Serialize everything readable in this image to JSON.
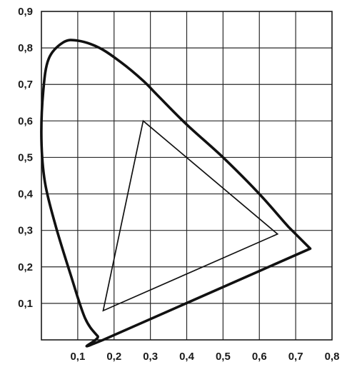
{
  "chart_data": {
    "type": "line",
    "title": "",
    "xlabel": "",
    "ylabel": "",
    "xlim": [
      0,
      0.8
    ],
    "ylim": [
      0,
      0.9
    ],
    "grid": true,
    "x_ticks": [
      "0,1",
      "0,2",
      "0,3",
      "0,4",
      "0,5",
      "0,6",
      "0,7",
      "0,8"
    ],
    "y_ticks": [
      "0,1",
      "0,2",
      "0,3",
      "0,4",
      "0,5",
      "0,6",
      "0,7",
      "0,8",
      "0,9"
    ],
    "series": [
      {
        "style": "thick",
        "closed": true,
        "x": [
          0.74,
          0.68,
          0.6,
          0.5,
          0.4,
          0.32,
          0.28,
          0.22,
          0.16,
          0.1,
          0.06,
          0.02,
          0.005,
          0.0,
          0.01,
          0.04,
          0.08,
          0.12,
          0.155,
          0.17
        ],
        "y": [
          0.25,
          0.31,
          0.4,
          0.5,
          0.59,
          0.67,
          0.71,
          0.76,
          0.8,
          0.82,
          0.815,
          0.77,
          0.68,
          0.55,
          0.43,
          0.31,
          0.18,
          0.06,
          0.01,
          0.0
        ]
      },
      {
        "style": "thin",
        "closed": true,
        "x": [
          0.28,
          0.65,
          0.17
        ],
        "y": [
          0.6,
          0.29,
          0.08
        ]
      }
    ]
  }
}
